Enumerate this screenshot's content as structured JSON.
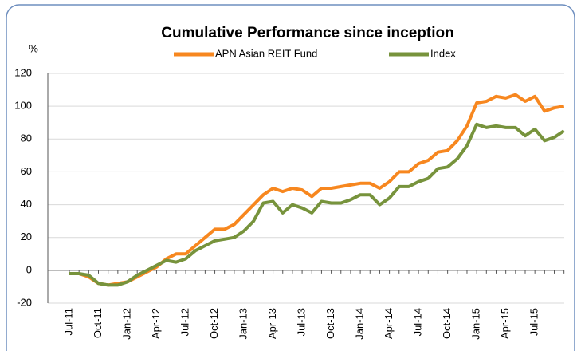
{
  "chart_data": {
    "type": "line",
    "title": "Cumulative Performance since inception",
    "ylabel": "%",
    "categories": [
      "Jul-11",
      null,
      null,
      "Oct-11",
      null,
      null,
      "Jan-12",
      null,
      null,
      "Apr-12",
      null,
      null,
      "Jul-12",
      null,
      null,
      "Oct-12",
      null,
      null,
      "Jan-13",
      null,
      null,
      "Apr-13",
      null,
      null,
      "Jul-13",
      null,
      null,
      "Oct-13",
      null,
      null,
      "Jan-14",
      null,
      null,
      "Apr-14",
      null,
      null,
      "Jul-14",
      null,
      null,
      "Oct-14",
      null,
      null,
      "Jan-15",
      null,
      null,
      "Apr-15",
      null,
      null,
      "Jul-15",
      null,
      null,
      null
    ],
    "series": [
      {
        "name": "APN Asian REIT Fund",
        "color": "#f7871f",
        "values": [
          -2,
          -2,
          -4,
          -8,
          -9,
          -8,
          -7,
          -4,
          -1,
          2,
          7,
          10,
          10,
          15,
          20,
          25,
          25,
          28,
          34,
          40,
          46,
          50,
          48,
          50,
          49,
          45,
          50,
          50,
          51,
          52,
          53,
          53,
          50,
          54,
          60,
          60,
          65,
          67,
          72,
          73,
          79,
          88,
          102,
          103,
          106,
          105,
          107,
          103,
          106,
          97,
          99,
          100
        ]
      },
      {
        "name": "Index",
        "color": "#77933c",
        "values": [
          -2,
          -2,
          -3,
          -8,
          -9,
          -9,
          -7,
          -3,
          0,
          3,
          6,
          5,
          7,
          12,
          15,
          18,
          19,
          20,
          24,
          30,
          41,
          42,
          35,
          40,
          38,
          35,
          42,
          41,
          41,
          43,
          46,
          46,
          40,
          44,
          51,
          51,
          54,
          56,
          62,
          63,
          68,
          76,
          89,
          87,
          88,
          87,
          87,
          82,
          86,
          79,
          81,
          85
        ]
      }
    ],
    "ylim": [
      -20,
      120
    ],
    "yticks": [
      -20,
      0,
      20,
      40,
      60,
      80,
      100,
      120
    ],
    "grid": true,
    "negative_tick_color": "#ff0000",
    "legend": "top"
  }
}
